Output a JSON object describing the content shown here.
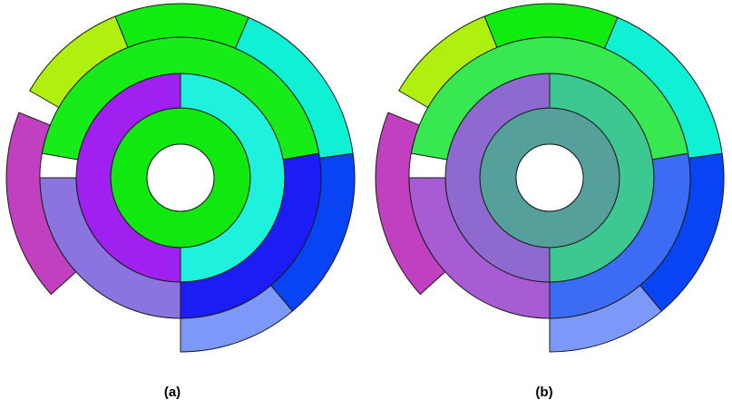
{
  "figure": {
    "panels": [
      {
        "label": "(a)",
        "rings": [
          {
            "level": 1,
            "segments": [
              {
                "start_deg": 0,
                "end_deg": 360,
                "color": "#10e810"
              }
            ]
          },
          {
            "level": 2,
            "segments": [
              {
                "start_deg": 0,
                "end_deg": 180,
                "color": "#1ef2dc"
              },
              {
                "start_deg": 180,
                "end_deg": 360,
                "color": "#a020f0"
              }
            ]
          },
          {
            "level": 3,
            "segments": [
              {
                "start_deg": 280,
                "end_deg": 80,
                "color": "#18ec18"
              },
              {
                "start_deg": 80,
                "end_deg": 180,
                "color": "#1c1cf4"
              },
              {
                "start_deg": 180,
                "end_deg": 270,
                "color": "#8c74e0"
              }
            ]
          },
          {
            "level": 4,
            "segments": [
              {
                "start_deg": 300,
                "end_deg": 338,
                "color": "#b0f010"
              },
              {
                "start_deg": 338,
                "end_deg": 23,
                "color": "#10ec10"
              },
              {
                "start_deg": 23,
                "end_deg": 82,
                "color": "#10f0d4"
              },
              {
                "start_deg": 82,
                "end_deg": 140,
                "color": "#0844f4"
              },
              {
                "start_deg": 140,
                "end_deg": 180,
                "color": "#7c98f8"
              },
              {
                "start_deg": 228,
                "end_deg": 292,
                "color": "#c040c0"
              }
            ]
          }
        ]
      },
      {
        "label": "(b)",
        "rings": [
          {
            "level": 1,
            "segments": [
              {
                "start_deg": 0,
                "end_deg": 360,
                "color": "#56a09c"
              }
            ]
          },
          {
            "level": 2,
            "segments": [
              {
                "start_deg": 0,
                "end_deg": 180,
                "color": "#3cc890"
              },
              {
                "start_deg": 180,
                "end_deg": 360,
                "color": "#8e6ad0"
              }
            ]
          },
          {
            "level": 3,
            "segments": [
              {
                "start_deg": 280,
                "end_deg": 80,
                "color": "#38e850"
              },
              {
                "start_deg": 80,
                "end_deg": 180,
                "color": "#3c6cf4"
              },
              {
                "start_deg": 180,
                "end_deg": 270,
                "color": "#a85cd4"
              }
            ]
          },
          {
            "level": 4,
            "segments": [
              {
                "start_deg": 300,
                "end_deg": 338,
                "color": "#b0f010"
              },
              {
                "start_deg": 338,
                "end_deg": 23,
                "color": "#10ec10"
              },
              {
                "start_deg": 23,
                "end_deg": 82,
                "color": "#10f0d4"
              },
              {
                "start_deg": 82,
                "end_deg": 140,
                "color": "#0844f4"
              },
              {
                "start_deg": 140,
                "end_deg": 180,
                "color": "#7c98f8"
              },
              {
                "start_deg": 228,
                "end_deg": 292,
                "color": "#c040c0"
              }
            ]
          }
        ]
      }
    ]
  }
}
